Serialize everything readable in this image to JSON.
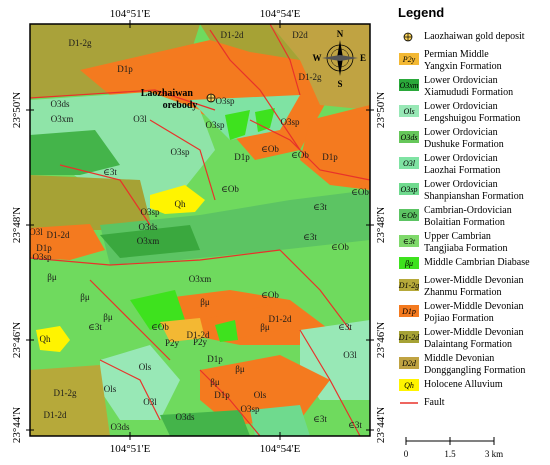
{
  "map": {
    "top_ticks": [
      "104°51'E",
      "104°54'E"
    ],
    "bottom_ticks": [
      "104°51'E",
      "104°54'E"
    ],
    "left_ticks": [
      "23°50'N",
      "23°48'N",
      "23°46'N",
      "23°44'N"
    ],
    "right_ticks": [
      "23°50'N",
      "23°48'N",
      "23°46'N",
      "23°44'N"
    ],
    "deposit_label": [
      "Laozhaiwan",
      "orebody"
    ],
    "compass_letters": [
      "N",
      "E",
      "S",
      "W"
    ],
    "unit_labels": [
      "D1-2g",
      "D1-2d",
      "D2d",
      "D1p",
      "D1-2g",
      "O3sp",
      "O3ds",
      "O3xm",
      "O3l",
      "O3sp",
      "O3sp",
      "∈Ob",
      "O3sp",
      "D1p",
      "∈Ob",
      "D1p",
      "∈3t",
      "∈3t",
      "∈Ob",
      "∈Ob",
      "Qh",
      "O3sp",
      "O3ds",
      "O3xm",
      "D1-2d",
      "O3l",
      "D1p",
      "O3sp",
      "∈3t",
      "∈Ob",
      "βμ",
      "βμ",
      "O3xm",
      "∈Ob",
      "βμ",
      "βμ",
      "D1-2d",
      "βμ",
      "D1-2d",
      "Qh",
      "∈3t",
      "∈Ob",
      "P2y",
      "P2y",
      "D1p",
      "∈3t",
      "O3l",
      "Ols",
      "βμ",
      "βμ",
      "D1p",
      "Ols",
      "D1-2g",
      "Ols",
      "O3l",
      "D1-2d",
      "O3sp",
      "O3ds",
      "O3ds",
      "∈3t",
      "∈3t"
    ]
  },
  "legend": {
    "title": "Legend",
    "items": [
      {
        "symbol": "",
        "color": "#f6cf58",
        "text": [
          "Laozhaiwan gold deposit"
        ]
      },
      {
        "symbol": "P2y",
        "color": "#f3b833",
        "text": [
          "Permian Middle",
          "Yangxin Formation"
        ]
      },
      {
        "symbol": "O3xm",
        "color": "#2aa83a",
        "text": [
          "Lower Ordovician",
          "Xiamududi Formation"
        ]
      },
      {
        "symbol": "Ols",
        "color": "#98e8b6",
        "text": [
          "Lower Ordovician",
          "Lengshuigou Formation"
        ]
      },
      {
        "symbol": "O3ds",
        "color": "#66c75a",
        "text": [
          "Lower Ordovician",
          "Dushuke Formation"
        ]
      },
      {
        "symbol": "O3l",
        "color": "#7fe3a3",
        "text": [
          "Lower Ordovician",
          "Laozhai Formation"
        ]
      },
      {
        "symbol": "O3sp",
        "color": "#6fda8e",
        "text": [
          "Lower Ordovician",
          "Shanpianshan Formation"
        ]
      },
      {
        "symbol": "∈Ob",
        "color": "#5cc463",
        "text": [
          "Cambrian-Ordovician",
          "Bolaitian Formation"
        ]
      },
      {
        "symbol": "∈3t",
        "color": "#7fd96b",
        "text": [
          "Upper Cambrian",
          "Tangjiaba Formation"
        ]
      },
      {
        "symbol": "βμ",
        "color": "#3ee21e",
        "text": [
          "Middle Cambrian Diabase"
        ]
      },
      {
        "symbol": "D1-2g",
        "color": "#b6a93a",
        "text": [
          "Lower-Middle Devonian",
          "Zhanmu Formation"
        ]
      },
      {
        "symbol": "D1p",
        "color": "#f47a1f",
        "text": [
          "Lower-Middle Devonian",
          "Pojiao Formation"
        ]
      },
      {
        "symbol": "D1-2d",
        "color": "#a6a235",
        "text": [
          "Lower-Middle Devonian",
          "Dalaintang Formation"
        ]
      },
      {
        "symbol": "D2d",
        "color": "#c0a342",
        "text": [
          "Middle Devonian",
          "Donggangling Formation"
        ]
      },
      {
        "symbol": "Qh",
        "color": "#fff400",
        "text": [
          "Holocene Alluvium"
        ]
      },
      {
        "symbol": "",
        "color": "#e8322a",
        "text": [
          "Fault"
        ]
      }
    ],
    "scale_labels": [
      "0",
      "1.5",
      "3 km"
    ]
  }
}
